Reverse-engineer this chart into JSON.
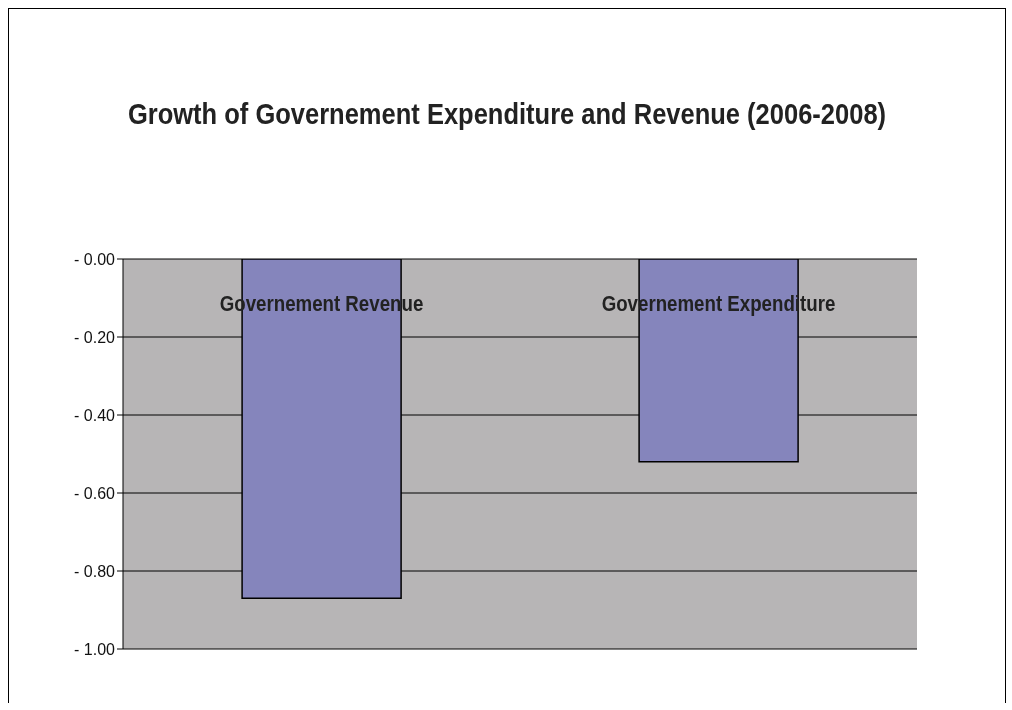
{
  "chart_data": {
    "type": "bar",
    "title": "Growth of Governement Expenditure and Revenue (2006-2008)",
    "categories": [
      "Governement Revenue",
      "Governement Expenditure"
    ],
    "values": [
      -0.87,
      -0.52
    ],
    "color": "#8585bc",
    "ylim": [
      -1,
      0
    ],
    "yticks": [
      {
        "value": 0,
        "label": "- 0.00"
      },
      {
        "value": -0.2,
        "label": "- 0.20"
      },
      {
        "value": -0.4,
        "label": "- 0.40"
      },
      {
        "value": -0.6,
        "label": "- 0.60"
      },
      {
        "value": -0.8,
        "label": "- 0.80"
      },
      {
        "value": -1,
        "label": "- 1.00"
      }
    ],
    "grid": "y"
  }
}
